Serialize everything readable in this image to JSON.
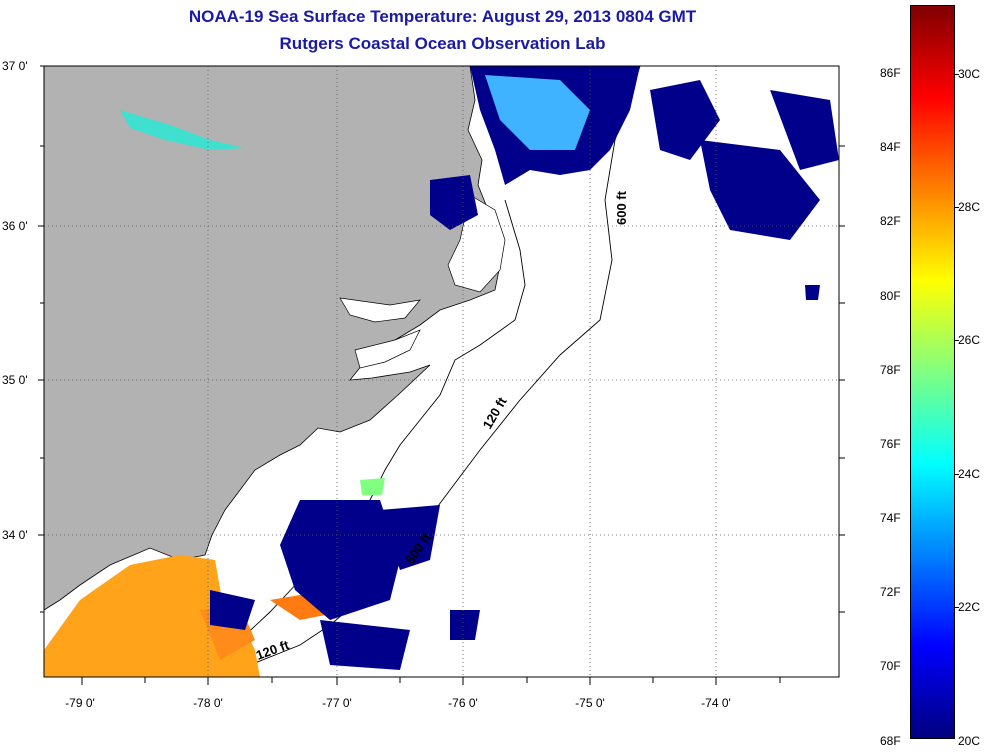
{
  "title_line1": "NOAA-19 Sea Surface Temperature:  August 29, 2013 0804 GMT",
  "title_line2": "Rutgers Coastal Ocean Observation Lab",
  "latitude_labels": [
    "37 0'",
    "36 0'",
    "35 0'",
    "34 0'"
  ],
  "longitude_labels": [
    "-79 0'",
    "-78 0'",
    "-77 0'",
    "-76 0'",
    "-75 0'",
    "-74 0'"
  ],
  "isobath_labels": [
    "600 ft",
    "120 ft",
    "600 ft",
    "120 ft"
  ],
  "colorbar": {
    "fahrenheit_labels": [
      "86F",
      "84F",
      "82F",
      "80F",
      "78F",
      "76F",
      "74F",
      "72F",
      "70F",
      "68F"
    ],
    "celsius_labels": [
      "30C",
      "28C",
      "26C",
      "24C",
      "22C",
      "20C"
    ],
    "colors": [
      "#00007f",
      "#0000ff",
      "#0080ff",
      "#00ffff",
      "#80ff80",
      "#ffff00",
      "#ff8000",
      "#ff0000",
      "#800000"
    ]
  },
  "colors": {
    "land": "#b2b2b2",
    "no_data_ocean": "#ffffff",
    "cold_water": "#00008b",
    "warm_water": "#ffa31a",
    "title": "#1a1aa6"
  }
}
